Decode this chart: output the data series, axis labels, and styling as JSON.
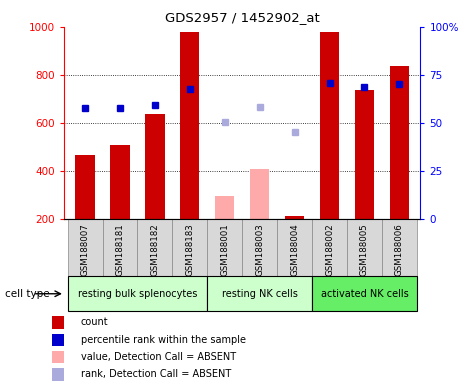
{
  "title": "GDS2957 / 1452902_at",
  "samples": [
    "GSM188007",
    "GSM188181",
    "GSM188182",
    "GSM188183",
    "GSM188001",
    "GSM188003",
    "GSM188004",
    "GSM188002",
    "GSM188005",
    "GSM188006"
  ],
  "groups": [
    {
      "label": "resting bulk splenocytes",
      "color": "#ccffcc",
      "start": 0,
      "end": 4
    },
    {
      "label": "resting NK cells",
      "color": "#ccffcc",
      "start": 4,
      "end": 7
    },
    {
      "label": "activated NK cells",
      "color": "#66ee66",
      "start": 7,
      "end": 10
    }
  ],
  "bar_values": [
    465,
    507,
    635,
    980,
    null,
    null,
    213,
    980,
    737,
    837
  ],
  "bar_absent_values": [
    null,
    null,
    null,
    null,
    295,
    408,
    null,
    null,
    null,
    null
  ],
  "bar_color_present": "#cc0000",
  "bar_color_absent": "#ffaaaa",
  "dot_values": [
    660,
    660,
    675,
    740,
    null,
    null,
    null,
    768,
    748,
    760
  ],
  "dot_absent_values": [
    null,
    null,
    null,
    null,
    603,
    665,
    562,
    null,
    null,
    null
  ],
  "dot_color_present": "#0000cc",
  "dot_color_absent": "#aaaadd",
  "ylim": [
    200,
    1000
  ],
  "y_ticks_left": [
    200,
    400,
    600,
    800,
    1000
  ],
  "y_ticks_right": [
    0,
    25,
    50,
    75,
    100
  ],
  "grid_lines": [
    400,
    600,
    800
  ],
  "bar_width": 0.55,
  "cell_type_label": "cell type",
  "legend_items": [
    {
      "label": "count",
      "color": "#cc0000"
    },
    {
      "label": "percentile rank within the sample",
      "color": "#0000cc"
    },
    {
      "label": "value, Detection Call = ABSENT",
      "color": "#ffaaaa"
    },
    {
      "label": "rank, Detection Call = ABSENT",
      "color": "#aaaadd"
    }
  ],
  "sample_cell_color": "#d8d8d8",
  "sample_cell_border": "#888888"
}
